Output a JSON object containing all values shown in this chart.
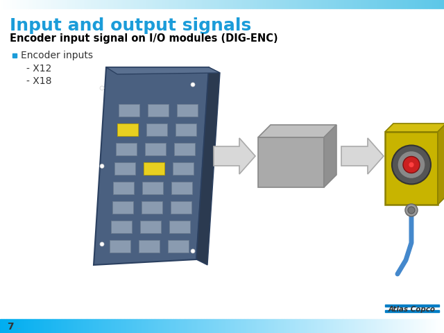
{
  "title": "Input and output signals",
  "subtitle": "Encoder input signal on I/O modules (DIG-ENC)",
  "bullet_main": "Encoder inputs",
  "bullet_sub1": "- X12",
  "bullet_sub2": "- X18",
  "title_color": "#1B9CD9",
  "subtitle_color": "#000000",
  "bullet_color": "#333333",
  "bg_color": "#FFFFFF",
  "footer_number": "7",
  "footer_dots": "..",
  "atlas_copco_blue": "#007DC5",
  "board_face_color": "#4A6080",
  "board_edge_color": "#2B4060",
  "board_right_color": "#2B3A50",
  "board_top_color": "#5A7090",
  "conn_color": "#8A9BB0",
  "conn_yellow": "#E8D020",
  "box_face": "#AAAAAA",
  "box_top": "#C0C0C0",
  "box_right": "#909090",
  "box_outline": "#888888",
  "arrow_fill": "#D8D8D8",
  "arrow_outline": "#AAAAAA",
  "enc_yellow": "#C8B400",
  "enc_outline": "#8B8000",
  "enc_grey_circle": "#606060",
  "enc_red_inner": "#CC2020",
  "cable_color": "#4488CC"
}
